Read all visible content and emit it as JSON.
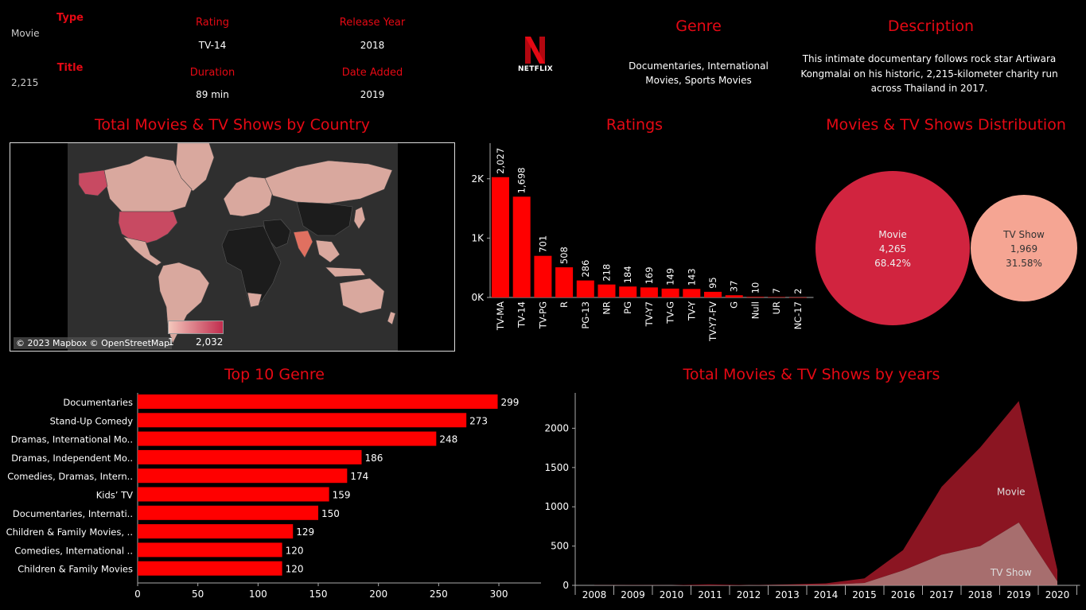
{
  "header": {
    "type_label": "Type",
    "type_value": "Movie",
    "title_label": "Title",
    "title_value": "2,215",
    "rating_label": "Rating",
    "rating_value": "TV-14",
    "release_year_label": "Release Year",
    "release_year_value": "2018",
    "duration_label": "Duration",
    "duration_value": "89 min",
    "date_added_label": "Date Added",
    "date_added_value": "2019",
    "logo_text": "NETFLIX",
    "genre_label": "Genre",
    "genre_value": "Documentaries, International Movies, Sports Movies",
    "description_label": "Description",
    "description_value": "This intimate documentary follows rock star Artiwara Kongmalai on his historic, 2,215-kilometer charity run across Thailand in 2017."
  },
  "map": {
    "title": "Total Movies & TV Shows by Country",
    "attribution": "© 2023 Mapbox © OpenStreetMap",
    "legend_min": "1",
    "legend_max": "2,032"
  },
  "colors": {
    "accent": "#e50914",
    "bar": "#ff0000",
    "movie": "#d1243f",
    "tvshow": "#f5a593",
    "area_movie": "#8b1522",
    "area_tv": "#b97a7a"
  },
  "chart_data": [
    {
      "type": "bar",
      "title": "Ratings",
      "categories": [
        "TV-MA",
        "TV-14",
        "TV-PG",
        "R",
        "PG-13",
        "NR",
        "PG",
        "TV-Y7",
        "TV-G",
        "TV-Y",
        "TV-Y7-FV",
        "G",
        "Null",
        "UR",
        "NC-17"
      ],
      "values": [
        2027,
        1698,
        701,
        508,
        286,
        218,
        184,
        169,
        149,
        143,
        95,
        37,
        10,
        7,
        2
      ],
      "value_labels": [
        "2,027",
        "1,698",
        "701",
        "508",
        "286",
        "218",
        "184",
        "169",
        "149",
        "143",
        "95",
        "37",
        "10",
        "7",
        "2"
      ],
      "ylim": [
        0,
        2600
      ],
      "yticks": [
        {
          "v": 0,
          "label": "0K"
        },
        {
          "v": 1000,
          "label": "1K"
        },
        {
          "v": 2000,
          "label": "2K"
        }
      ]
    },
    {
      "type": "pie",
      "title": "Movies & TV Shows Distribution",
      "slices": [
        {
          "label": "Movie",
          "value": 4265,
          "value_label": "4,265",
          "pct": "68.42%"
        },
        {
          "label": "TV Show",
          "value": 1969,
          "value_label": "1,969",
          "pct": "31.58%"
        }
      ]
    },
    {
      "type": "bar",
      "orientation": "horizontal",
      "title": "Top 10 Genre",
      "categories": [
        "Documentaries",
        "Stand-Up Comedy",
        "Dramas, International Mo..",
        "Dramas, Independent Mo..",
        "Comedies, Dramas, Intern..",
        "Kids’ TV",
        "Documentaries, Internati..",
        "Children & Family Movies, ..",
        "Comedies, International ..",
        "Children & Family Movies"
      ],
      "values": [
        299,
        273,
        248,
        186,
        174,
        159,
        150,
        129,
        120,
        120
      ],
      "xlim": [
        0,
        335
      ],
      "xticks": [
        0,
        50,
        100,
        150,
        200,
        250,
        300
      ]
    },
    {
      "type": "area",
      "title": "Total Movies & TV Shows by years",
      "x": [
        "2008",
        "2009",
        "2010",
        "2011",
        "2012",
        "2013",
        "2014",
        "2015",
        "2016",
        "2017",
        "2018",
        "2019",
        "2020"
      ],
      "series": [
        {
          "name": "Movie",
          "values": [
            1,
            2,
            1,
            13,
            3,
            6,
            19,
            58,
            258,
            864,
            1255,
            1546,
            147
          ]
        },
        {
          "name": "TV Show",
          "values": [
            1,
            0,
            0,
            0,
            0,
            5,
            6,
            30,
            190,
            390,
            500,
            800,
            50
          ]
        }
      ],
      "stacked": true,
      "ylim": [
        0,
        2450
      ],
      "yticks": [
        0,
        500,
        1000,
        1500,
        2000
      ]
    }
  ]
}
